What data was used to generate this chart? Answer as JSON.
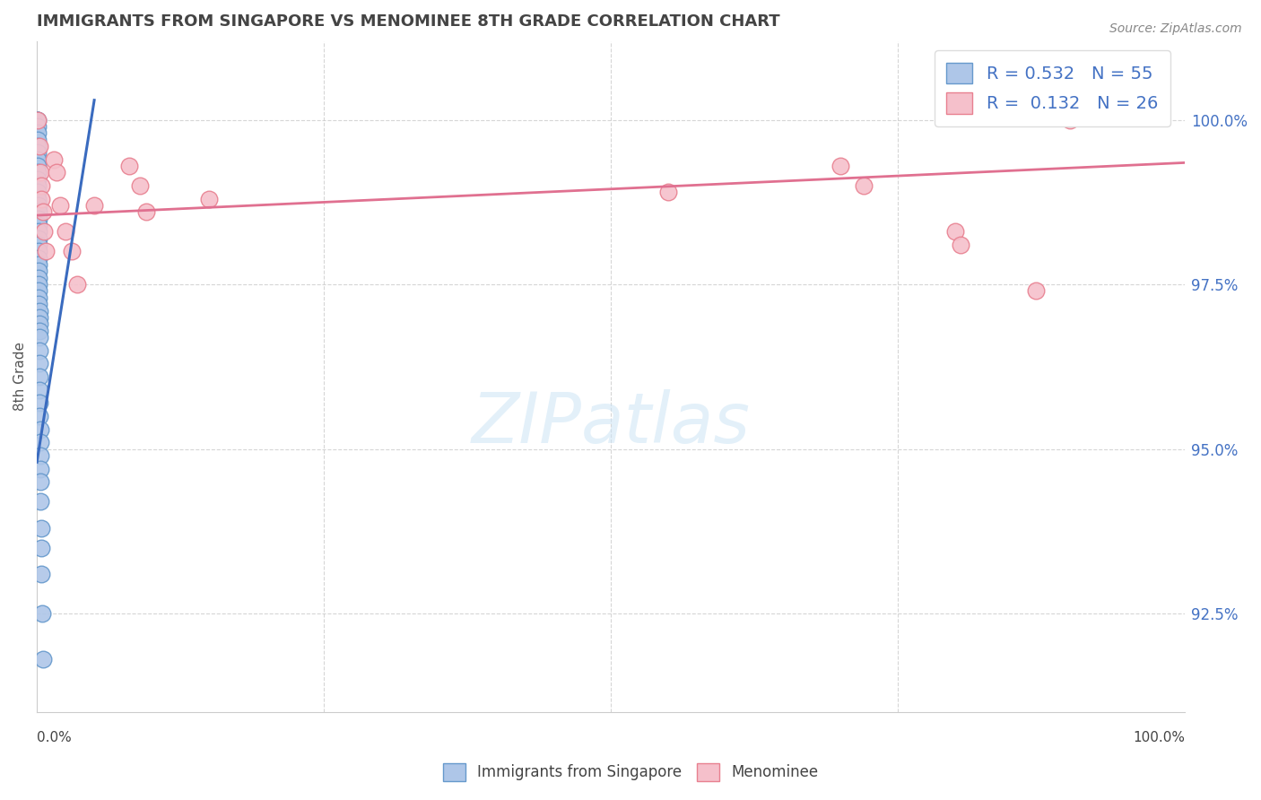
{
  "title": "IMMIGRANTS FROM SINGAPORE VS MENOMINEE 8TH GRADE CORRELATION CHART",
  "source_text": "Source: ZipAtlas.com",
  "legend_label1": "Immigrants from Singapore",
  "legend_label2": "Menominee",
  "r1": "0.532",
  "n1": "55",
  "r2": "0.132",
  "n2": "26",
  "color_blue_fill": "#aec6e8",
  "color_blue_edge": "#6699cc",
  "color_blue_line": "#3a6bbf",
  "color_pink_fill": "#f5c0cb",
  "color_pink_edge": "#e88090",
  "color_pink_line": "#e07090",
  "color_text_blue": "#4472c4",
  "color_grid": "#cccccc",
  "xmin": 0.0,
  "xmax": 100.0,
  "ymin": 91.0,
  "ymax": 101.2,
  "ylabel_right_values": [
    100.0,
    97.5,
    95.0,
    92.5
  ],
  "blue_trend_x0": 0.0,
  "blue_trend_y0": 94.8,
  "blue_trend_x1": 5.0,
  "blue_trend_y1": 100.3,
  "pink_trend_x0": 0.0,
  "pink_trend_y0": 98.55,
  "pink_trend_x1": 100.0,
  "pink_trend_y1": 99.35,
  "blue_dots": [
    [
      0.02,
      100.0
    ],
    [
      0.02,
      100.0
    ],
    [
      0.03,
      100.0
    ],
    [
      0.03,
      100.0
    ],
    [
      0.04,
      100.0
    ],
    [
      0.04,
      99.9
    ],
    [
      0.05,
      99.8
    ],
    [
      0.05,
      99.7
    ],
    [
      0.06,
      99.6
    ],
    [
      0.06,
      99.5
    ],
    [
      0.07,
      99.4
    ],
    [
      0.07,
      99.3
    ],
    [
      0.08,
      99.2
    ],
    [
      0.08,
      99.1
    ],
    [
      0.09,
      99.0
    ],
    [
      0.1,
      98.9
    ],
    [
      0.1,
      98.8
    ],
    [
      0.11,
      98.7
    ],
    [
      0.11,
      98.6
    ],
    [
      0.12,
      98.5
    ],
    [
      0.12,
      98.4
    ],
    [
      0.13,
      98.3
    ],
    [
      0.13,
      98.2
    ],
    [
      0.14,
      98.1
    ],
    [
      0.14,
      98.0
    ],
    [
      0.15,
      97.9
    ],
    [
      0.15,
      97.8
    ],
    [
      0.16,
      97.7
    ],
    [
      0.16,
      97.6
    ],
    [
      0.17,
      97.5
    ],
    [
      0.17,
      97.4
    ],
    [
      0.18,
      97.3
    ],
    [
      0.18,
      97.2
    ],
    [
      0.19,
      97.1
    ],
    [
      0.2,
      97.0
    ],
    [
      0.2,
      96.9
    ],
    [
      0.21,
      96.8
    ],
    [
      0.22,
      96.7
    ],
    [
      0.22,
      96.5
    ],
    [
      0.23,
      96.3
    ],
    [
      0.24,
      96.1
    ],
    [
      0.25,
      95.9
    ],
    [
      0.25,
      95.7
    ],
    [
      0.26,
      95.5
    ],
    [
      0.27,
      95.3
    ],
    [
      0.28,
      95.1
    ],
    [
      0.29,
      94.9
    ],
    [
      0.3,
      94.7
    ],
    [
      0.31,
      94.5
    ],
    [
      0.33,
      94.2
    ],
    [
      0.35,
      93.8
    ],
    [
      0.37,
      93.5
    ],
    [
      0.4,
      93.1
    ],
    [
      0.45,
      92.5
    ],
    [
      0.5,
      91.8
    ]
  ],
  "pink_dots": [
    [
      0.08,
      100.0
    ],
    [
      0.25,
      99.6
    ],
    [
      0.3,
      99.2
    ],
    [
      0.35,
      99.0
    ],
    [
      0.4,
      98.8
    ],
    [
      0.5,
      98.6
    ],
    [
      0.6,
      98.3
    ],
    [
      0.8,
      98.0
    ],
    [
      1.5,
      99.4
    ],
    [
      1.7,
      99.2
    ],
    [
      2.0,
      98.7
    ],
    [
      2.5,
      98.3
    ],
    [
      3.0,
      98.0
    ],
    [
      3.5,
      97.5
    ],
    [
      5.0,
      98.7
    ],
    [
      8.0,
      99.3
    ],
    [
      9.0,
      99.0
    ],
    [
      9.5,
      98.6
    ],
    [
      15.0,
      98.8
    ],
    [
      55.0,
      98.9
    ],
    [
      70.0,
      99.3
    ],
    [
      72.0,
      99.0
    ],
    [
      80.0,
      98.3
    ],
    [
      80.5,
      98.1
    ],
    [
      87.0,
      97.4
    ],
    [
      90.0,
      100.0
    ]
  ]
}
